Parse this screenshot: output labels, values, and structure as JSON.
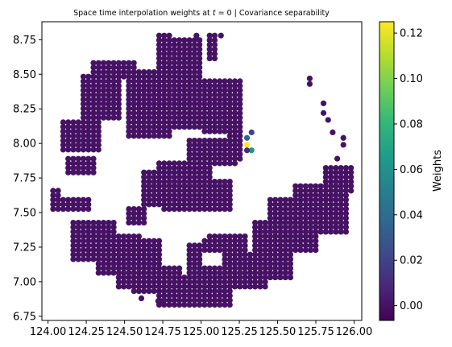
{
  "chart_data": {
    "type": "scatter",
    "title_prefix": "Space time interpolation weights at ",
    "title_t": "t",
    "title_suffix": " = 0 | Covariance separability",
    "xlabel": "",
    "ylabel": "",
    "xlim": [
      123.96,
      126.05
    ],
    "ylim": [
      6.72,
      8.88
    ],
    "xticks": [
      124.0,
      124.25,
      124.5,
      124.75,
      125.0,
      125.25,
      125.5,
      125.75,
      126.0
    ],
    "xtick_labels": [
      "124.00",
      "124.25",
      "124.50",
      "124.75",
      "125.00",
      "125.25",
      "125.50",
      "125.75",
      "126.00"
    ],
    "yticks": [
      6.75,
      7.0,
      7.25,
      7.5,
      7.75,
      8.0,
      8.25,
      8.5,
      8.75
    ],
    "ytick_labels": [
      "6.75",
      "7.00",
      "7.25",
      "7.50",
      "7.75",
      "8.00",
      "8.25",
      "8.50",
      "8.75"
    ],
    "grid": false,
    "grid_spacing": 0.033,
    "colorbar": {
      "label": "Weights",
      "range": [
        -0.0065,
        0.125
      ],
      "ticks": [
        0.0,
        0.02,
        0.04,
        0.06,
        0.08,
        0.1,
        0.12
      ],
      "tick_labels": [
        "0.00",
        "0.02",
        "0.04",
        "0.06",
        "0.08",
        "0.10",
        "0.12"
      ],
      "colormap": "viridis",
      "colors": [
        "#440154",
        "#482878",
        "#3e4989",
        "#31688e",
        "#26828e",
        "#1f9e89",
        "#35b779",
        "#6ece58",
        "#b5de2b",
        "#fde725"
      ]
    },
    "background_weight": 0.0,
    "base_color": "#440154",
    "regions": [
      {
        "x": [
          124.02,
          124.08
        ],
        "y": [
          7.52,
          7.66
        ]
      },
      {
        "x": [
          124.05,
          124.27
        ],
        "y": [
          7.52,
          7.62
        ]
      },
      {
        "x": [
          124.07,
          124.34
        ],
        "y": [
          7.94,
          8.18
        ]
      },
      {
        "x": [
          124.1,
          124.3
        ],
        "y": [
          7.78,
          7.92
        ]
      },
      {
        "x": [
          124.2,
          124.48
        ],
        "y": [
          8.17,
          8.5
        ]
      },
      {
        "x": [
          124.28,
          124.58
        ],
        "y": [
          8.47,
          8.6
        ]
      },
      {
        "x": [
          124.5,
          124.82
        ],
        "y": [
          8.03,
          8.52
        ]
      },
      {
        "x": [
          124.72,
          124.82
        ],
        "y": [
          8.5,
          8.8
        ]
      },
      {
        "x": [
          124.82,
          125.02
        ],
        "y": [
          8.1,
          8.75
        ]
      },
      {
        "x": [
          124.88,
          125.02
        ],
        "y": [
          8.5,
          8.7
        ]
      },
      {
        "x": [
          125.05,
          125.12
        ],
        "y": [
          8.6,
          8.8
        ]
      },
      {
        "x": [
          125.0,
          125.27
        ],
        "y": [
          8.08,
          8.45
        ]
      },
      {
        "x": [
          124.92,
          125.23
        ],
        "y": [
          7.84,
          8.05
        ]
      },
      {
        "x": [
          125.18,
          125.27
        ],
        "y": [
          7.88,
          8.08
        ]
      },
      {
        "x": [
          124.7,
          125.08
        ],
        "y": [
          7.58,
          7.88
        ]
      },
      {
        "x": [
          124.74,
          125.22
        ],
        "y": [
          7.5,
          7.74
        ]
      },
      {
        "x": [
          124.6,
          124.82
        ],
        "y": [
          7.55,
          7.82
        ]
      },
      {
        "x": [
          124.5,
          124.65
        ],
        "y": [
          7.42,
          7.55
        ]
      },
      {
        "x": [
          124.15,
          124.45
        ],
        "y": [
          7.15,
          7.45
        ]
      },
      {
        "x": [
          124.3,
          124.6
        ],
        "y": [
          7.05,
          7.35
        ]
      },
      {
        "x": [
          124.45,
          124.75
        ],
        "y": [
          6.95,
          7.3
        ]
      },
      {
        "x": [
          124.55,
          124.88
        ],
        "y": [
          6.9,
          7.1
        ]
      },
      {
        "x": [
          124.72,
          125.22
        ],
        "y": [
          6.82,
          7.05
        ]
      },
      {
        "x": [
          124.9,
          125.18
        ],
        "y": [
          7.0,
          7.28
        ]
      },
      {
        "x": [
          125.0,
          125.3
        ],
        "y": [
          7.05,
          7.35
        ]
      },
      {
        "x": [
          125.2,
          125.45
        ],
        "y": [
          6.95,
          7.2
        ]
      },
      {
        "x": [
          125.35,
          125.6
        ],
        "y": [
          7.0,
          7.45
        ]
      },
      {
        "x": [
          125.45,
          125.75
        ],
        "y": [
          7.2,
          7.6
        ]
      },
      {
        "x": [
          125.6,
          125.95
        ],
        "y": [
          7.35,
          7.7
        ]
      },
      {
        "x": [
          125.8,
          126.0
        ],
        "y": [
          7.65,
          7.85
        ]
      },
      {
        "x": [
          125.62,
          125.78
        ],
        "y": [
          7.45,
          7.68
        ]
      }
    ],
    "removed": [
      {
        "x": [
          124.35,
          124.5
        ],
        "y": [
          7.9,
          8.15
        ]
      },
      {
        "x": [
          124.82,
          125.05
        ],
        "y": [
          7.3,
          7.4
        ]
      },
      {
        "x": [
          125.08,
          125.22
        ],
        "y": [
          7.38,
          7.5
        ]
      },
      {
        "x": [
          125.0,
          125.15
        ],
        "y": [
          7.1,
          7.22
        ]
      }
    ],
    "extra_points": [
      {
        "x": 124.97,
        "y": 8.78,
        "w": 0.0
      },
      {
        "x": 125.13,
        "y": 8.78,
        "w": 0.0
      },
      {
        "x": 125.71,
        "y": 8.47,
        "w": 0.0
      },
      {
        "x": 125.71,
        "y": 8.43,
        "w": 0.0
      },
      {
        "x": 125.8,
        "y": 8.29,
        "w": 0.0
      },
      {
        "x": 125.8,
        "y": 8.22,
        "w": 0.0
      },
      {
        "x": 125.83,
        "y": 8.17,
        "w": 0.0
      },
      {
        "x": 125.86,
        "y": 8.08,
        "w": 0.0
      },
      {
        "x": 125.93,
        "y": 8.04,
        "w": 0.0
      },
      {
        "x": 125.93,
        "y": 7.99,
        "w": 0.0
      },
      {
        "x": 125.89,
        "y": 7.89,
        "w": 0.0
      },
      {
        "x": 124.72,
        "y": 6.86,
        "w": 0.0
      },
      {
        "x": 124.74,
        "y": 6.86,
        "w": 0.0
      },
      {
        "x": 124.61,
        "y": 6.88,
        "w": 0.0
      }
    ],
    "highlighted_points": [
      {
        "x": 125.3,
        "y": 8.04,
        "w": 0.036
      },
      {
        "x": 125.3,
        "y": 7.99,
        "w": 0.125
      },
      {
        "x": 125.33,
        "y": 7.95,
        "w": 0.06
      },
      {
        "x": 125.33,
        "y": 8.08,
        "w": 0.02
      },
      {
        "x": 125.3,
        "y": 7.95,
        "w": 0.008
      }
    ]
  }
}
